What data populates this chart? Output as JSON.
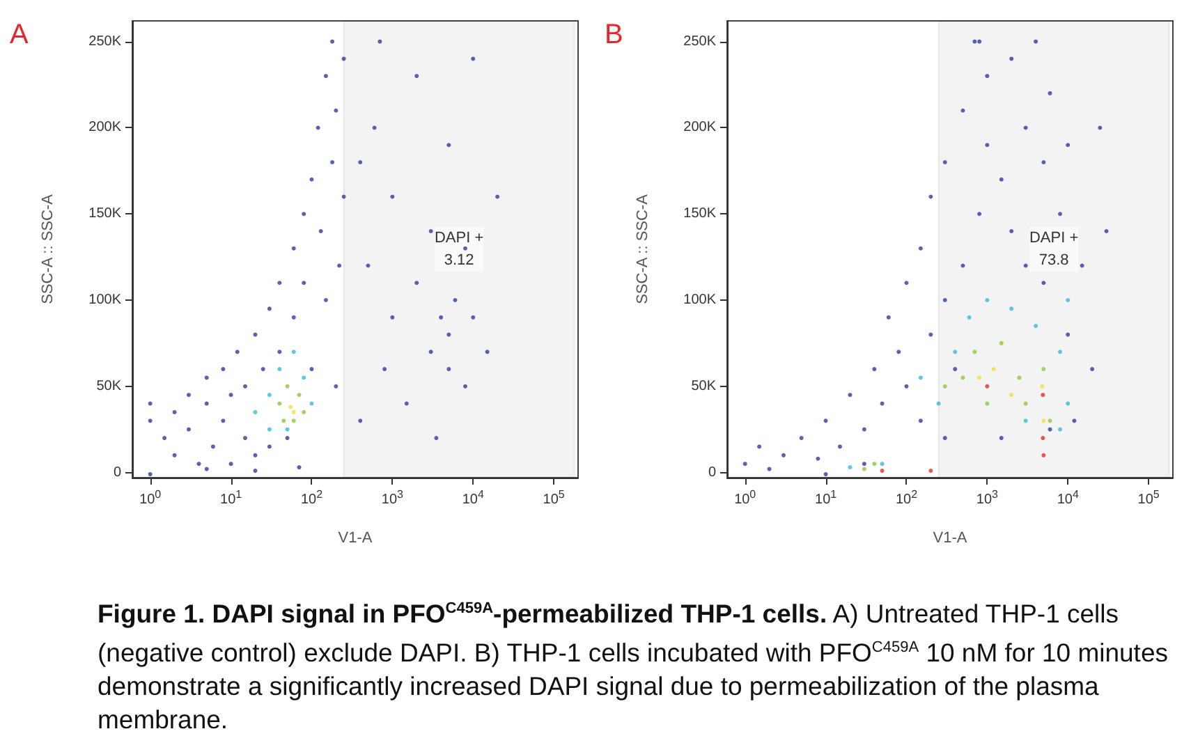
{
  "chart_data": [
    {
      "type": "scatter",
      "title": "A",
      "xlabel": "V1-A",
      "ylabel": "SSC-A :: SSC-A",
      "log": "x",
      "marker": "circle",
      "grid": false,
      "xlim": [
        0.6,
        200000
      ],
      "xticks": [
        {
          "value": 1,
          "label": "10$^{0}$"
        },
        {
          "value": 10,
          "label": "10$^{1}$"
        },
        {
          "value": 100,
          "label": "10$^{2}$"
        },
        {
          "value": 1000,
          "label": "10$^{3}$"
        },
        {
          "value": 10000,
          "label": "10$^{4}$"
        },
        {
          "value": 100000,
          "label": "10$^{5}$"
        }
      ],
      "ylim": [
        -3000,
        262000
      ],
      "yticks": [
        0,
        {
          "value": 50000,
          "label": "50K"
        },
        {
          "value": 100000,
          "label": "100K"
        },
        {
          "value": 150000,
          "label": "150K"
        },
        {
          "value": 200000,
          "label": "200K"
        },
        {
          "value": 250000,
          "label": "250K"
        }
      ],
      "bands": [
        {
          "axis": "x",
          "from": 250,
          "to": 180000,
          "label": "DAPI +\n3.12",
          "color": "#333333"
        }
      ],
      "series": [
        {
          "color": "#2c3c9c",
          "x": [
            1,
            1,
            1.5,
            2,
            2,
            3,
            3,
            4,
            5,
            5,
            6,
            8,
            8,
            10,
            10,
            12,
            15,
            15,
            20,
            20,
            25,
            30,
            30,
            40,
            40,
            50,
            60,
            60,
            80,
            80,
            100,
            100,
            120,
            130,
            150,
            150,
            180,
            180,
            200,
            200,
            220,
            250,
            250,
            1,
            5,
            20,
            70,
            400,
            500,
            600,
            800,
            1000,
            1000,
            1500,
            2000,
            2000,
            3000,
            3000,
            4000,
            5000,
            5000,
            6000,
            5000,
            8000,
            8000,
            10000,
            10000,
            15000,
            20000,
            3500,
            700,
            400
          ],
          "values": [
            30000,
            40000,
            20000,
            35000,
            10000,
            45000,
            25000,
            5000,
            40000,
            55000,
            15000,
            30000,
            60000,
            45000,
            5000,
            70000,
            20000,
            50000,
            80000,
            10000,
            60000,
            95000,
            15000,
            110000,
            70000,
            20000,
            130000,
            90000,
            150000,
            110000,
            170000,
            60000,
            200000,
            140000,
            230000,
            100000,
            250000,
            180000,
            210000,
            50000,
            120000,
            240000,
            160000,
            -1000,
            2000,
            1000,
            3000,
            30000,
            120000,
            200000,
            60000,
            90000,
            160000,
            40000,
            230000,
            110000,
            70000,
            140000,
            90000,
            80000,
            60000,
            100000,
            190000,
            50000,
            130000,
            240000,
            90000,
            70000,
            160000,
            20000,
            250000,
            180000
          ]
        },
        {
          "color": "#38b8e0",
          "x": [
            20,
            30,
            40,
            60,
            80,
            100,
            30,
            50
          ],
          "values": [
            35000,
            45000,
            60000,
            70000,
            55000,
            40000,
            25000,
            25000
          ]
        },
        {
          "color": "#8cc83c",
          "x": [
            40,
            50,
            70,
            60,
            80,
            45
          ],
          "values": [
            40000,
            50000,
            45000,
            30000,
            35000,
            30000
          ]
        },
        {
          "color": "#f0e040",
          "x": [
            60,
            55
          ],
          "values": [
            35000,
            38000
          ]
        }
      ]
    },
    {
      "type": "scatter",
      "title": "B",
      "xlabel": "V1-A",
      "ylabel": "SSC-A :: SSC-A",
      "log": "x",
      "marker": "circle",
      "grid": false,
      "xlim": [
        0.6,
        200000
      ],
      "xticks": [
        {
          "value": 1,
          "label": "10$^{0}$"
        },
        {
          "value": 10,
          "label": "10$^{1}$"
        },
        {
          "value": 100,
          "label": "10$^{2}$"
        },
        {
          "value": 1000,
          "label": "10$^{3}$"
        },
        {
          "value": 10000,
          "label": "10$^{4}$"
        },
        {
          "value": 100000,
          "label": "10$^{5}$"
        }
      ],
      "ylim": [
        -3000,
        262000
      ],
      "yticks": [
        0,
        {
          "value": 50000,
          "label": "50K"
        },
        {
          "value": 100000,
          "label": "100K"
        },
        {
          "value": 150000,
          "label": "150K"
        },
        {
          "value": 200000,
          "label": "200K"
        },
        {
          "value": 250000,
          "label": "250K"
        }
      ],
      "bands": [
        {
          "axis": "x",
          "from": 250,
          "to": 180000,
          "label": "DAPI +\n73.8",
          "color": "#333333"
        }
      ],
      "annotations": [
        "Figure 1. DAPI signal in PFO$^{C459A}$-permeabilized THP-1 cells.",
        "A) Untreated THP-1 cells (negative control) exclude DAPI. B) THP-1 cells incubated with PFO$^{C459A}$ 10 nM for 10 minutes demonstrate a significantly increased DAPI signal due to permeabilization of the plasma membrane."
      ],
      "series": [
        {
          "color": "#2c3c9c",
          "x": [
            1,
            1.5,
            2,
            3,
            5,
            8,
            10,
            15,
            20,
            30,
            40,
            50,
            60,
            80,
            100,
            100,
            150,
            150,
            200,
            200,
            300,
            300,
            500,
            500,
            700,
            800,
            1000,
            1000,
            1500,
            2000,
            2000,
            3000,
            3000,
            4000,
            5000,
            5000,
            6000,
            8000,
            10000,
            10000,
            15000,
            20000,
            25000,
            12000,
            400,
            300,
            1500,
            6000,
            30000,
            800,
            30,
            10
          ],
          "values": [
            5000,
            15000,
            2000,
            10000,
            20000,
            8000,
            30000,
            15000,
            45000,
            25000,
            60000,
            40000,
            90000,
            70000,
            110000,
            50000,
            130000,
            30000,
            160000,
            80000,
            180000,
            20000,
            210000,
            120000,
            250000,
            150000,
            230000,
            190000,
            170000,
            240000,
            140000,
            200000,
            120000,
            250000,
            180000,
            110000,
            220000,
            150000,
            190000,
            80000,
            120000,
            60000,
            200000,
            30000,
            60000,
            100000,
            20000,
            25000,
            140000,
            250000,
            5000,
            -1000
          ]
        },
        {
          "color": "#38b8e0",
          "x": [
            150,
            250,
            400,
            600,
            1000,
            2000,
            4000,
            8000,
            10000,
            10000,
            8000,
            3000,
            20,
            50
          ],
          "values": [
            55000,
            40000,
            70000,
            90000,
            100000,
            95000,
            85000,
            70000,
            40000,
            100000,
            25000,
            30000,
            3000,
            5000
          ]
        },
        {
          "color": "#8cc83c",
          "x": [
            300,
            500,
            700,
            1500,
            2500,
            3000,
            5000,
            6000,
            1000,
            40,
            30
          ],
          "values": [
            50000,
            55000,
            70000,
            75000,
            55000,
            40000,
            60000,
            30000,
            40000,
            5000,
            2000
          ]
        },
        {
          "color": "#f0e040",
          "x": [
            800,
            1200,
            2000,
            4800,
            5000
          ],
          "values": [
            55000,
            60000,
            45000,
            50000,
            30000
          ]
        },
        {
          "color": "#e03020",
          "x": [
            1000,
            4900,
            4900,
            5000,
            200,
            50
          ],
          "values": [
            50000,
            45000,
            20000,
            10000,
            1000,
            1000
          ]
        }
      ]
    }
  ]
}
